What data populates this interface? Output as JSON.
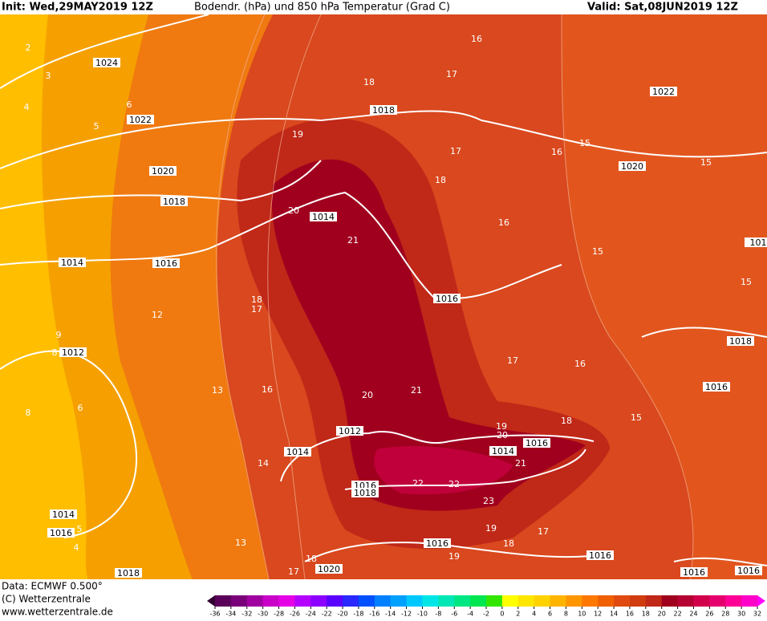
{
  "header": {
    "init": "Init: Wed,29MAY2019 12Z",
    "title": "Bodendr. (hPa) und 850 hPa Temperatur (Grad C)",
    "valid": "Valid: Sat,08JUN2019 12Z"
  },
  "footer": {
    "data": "Data: ECMWF   0.500°",
    "copyright": "(C) Wetterzentrale",
    "url": "www.wetterzentrale.de"
  },
  "isobar_labels": [
    "1024",
    "1022",
    "1020",
    "1018",
    "1014",
    "1016",
    "1012",
    "1014",
    "1018",
    "1022",
    "1020",
    "1016",
    "1018",
    "1016",
    "1012",
    "1014",
    "1016",
    "1014",
    "1016",
    "1018",
    "1016",
    "1016",
    "1020",
    "1014",
    "1016",
    "1018",
    "1016",
    "1016",
    "101"
  ],
  "temperature_labels": [
    "20",
    "21",
    "20",
    "21",
    "20",
    "19",
    "21",
    "22",
    "22",
    "23",
    "15",
    "15",
    "15",
    "15",
    "15",
    "5",
    "5",
    "18",
    "18",
    "19",
    "19",
    "17",
    "17",
    "16",
    "16",
    "17",
    "18",
    "19",
    "17",
    "18",
    "16",
    "16",
    "18",
    "17",
    "12",
    "13",
    "16",
    "13",
    "14",
    "2",
    "3",
    "4",
    "6",
    "9",
    "8",
    "8",
    "6",
    "4",
    "18",
    "17"
  ],
  "colorbar": {
    "ticks": [
      -36,
      -34,
      -32,
      -30,
      -28,
      -26,
      -24,
      -22,
      -20,
      -18,
      -16,
      -14,
      -12,
      -10,
      -8,
      -6,
      -4,
      -2,
      0,
      2,
      4,
      6,
      8,
      10,
      12,
      14,
      16,
      18,
      20,
      22,
      24,
      26,
      28,
      30,
      32
    ],
    "colors": [
      "#5a005a",
      "#7a007a",
      "#a000a0",
      "#c800c8",
      "#e600e6",
      "#b400ff",
      "#8c00ff",
      "#5a00ff",
      "#2828ff",
      "#0050ff",
      "#0080ff",
      "#00a0ff",
      "#00c8ff",
      "#00e6e6",
      "#00e6b4",
      "#00e682",
      "#00e650",
      "#32e600",
      "#ffff00",
      "#ffe600",
      "#ffd200",
      "#ffb400",
      "#ff9600",
      "#ff7800",
      "#f06000",
      "#e04a10",
      "#d03c10",
      "#c02818",
      "#a0001e",
      "#b40032",
      "#d2004b",
      "#e6006e",
      "#ff0096",
      "#ff00c8"
    ]
  }
}
